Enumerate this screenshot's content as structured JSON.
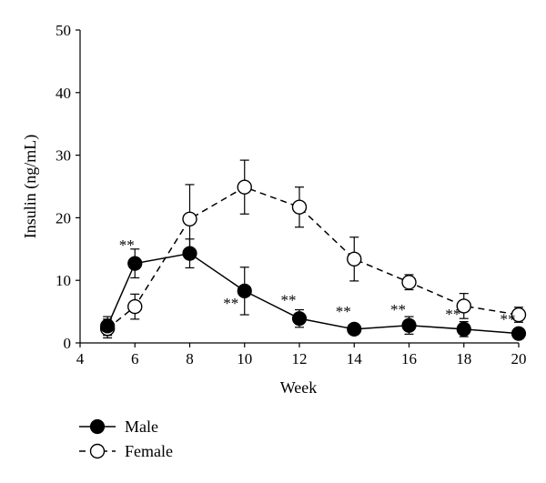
{
  "chart_data": {
    "type": "line",
    "title": "",
    "xlabel": "Week",
    "ylabel": "Insulin (ng/mL)",
    "xlim": [
      4,
      20
    ],
    "ylim": [
      0,
      50
    ],
    "xticks": [
      "4",
      "6",
      "8",
      "10",
      "12",
      "14",
      "16",
      "18",
      "20"
    ],
    "yticks": [
      "0",
      "10",
      "20",
      "30",
      "40",
      "50"
    ],
    "grid": false,
    "legend_position": "bottom-left",
    "series": [
      {
        "name": "Male",
        "marker": "filled-circle",
        "line": "solid",
        "x": [
          5,
          6,
          8,
          10,
          12,
          14,
          16,
          18,
          20
        ],
        "y": [
          2.7,
          12.7,
          14.3,
          8.3,
          3.9,
          2.2,
          2.8,
          2.2,
          1.5
        ],
        "error": [
          1.5,
          2.3,
          2.3,
          3.8,
          1.4,
          0.8,
          1.4,
          1.2,
          0.7
        ]
      },
      {
        "name": "Female",
        "marker": "open-circle",
        "line": "dashed",
        "x": [
          5,
          6,
          8,
          10,
          12,
          14,
          16,
          18,
          20
        ],
        "y": [
          2.3,
          5.8,
          19.8,
          24.9,
          21.7,
          13.4,
          9.7,
          5.9,
          4.5
        ],
        "error": [
          1.5,
          2.0,
          5.5,
          4.3,
          3.2,
          3.5,
          1.2,
          2.0,
          1.2
        ]
      }
    ],
    "annotations": [
      {
        "text": "**",
        "x": 5.7,
        "y": 14.8
      },
      {
        "text": "**",
        "x": 9.5,
        "y": 5.5
      },
      {
        "text": "**",
        "x": 11.6,
        "y": 6.0
      },
      {
        "text": "**",
        "x": 13.6,
        "y": 4.2
      },
      {
        "text": "**",
        "x": 15.6,
        "y": 4.5
      },
      {
        "text": "**",
        "x": 17.6,
        "y": 3.8
      },
      {
        "text": "**",
        "x": 19.6,
        "y": 3.0
      }
    ]
  }
}
